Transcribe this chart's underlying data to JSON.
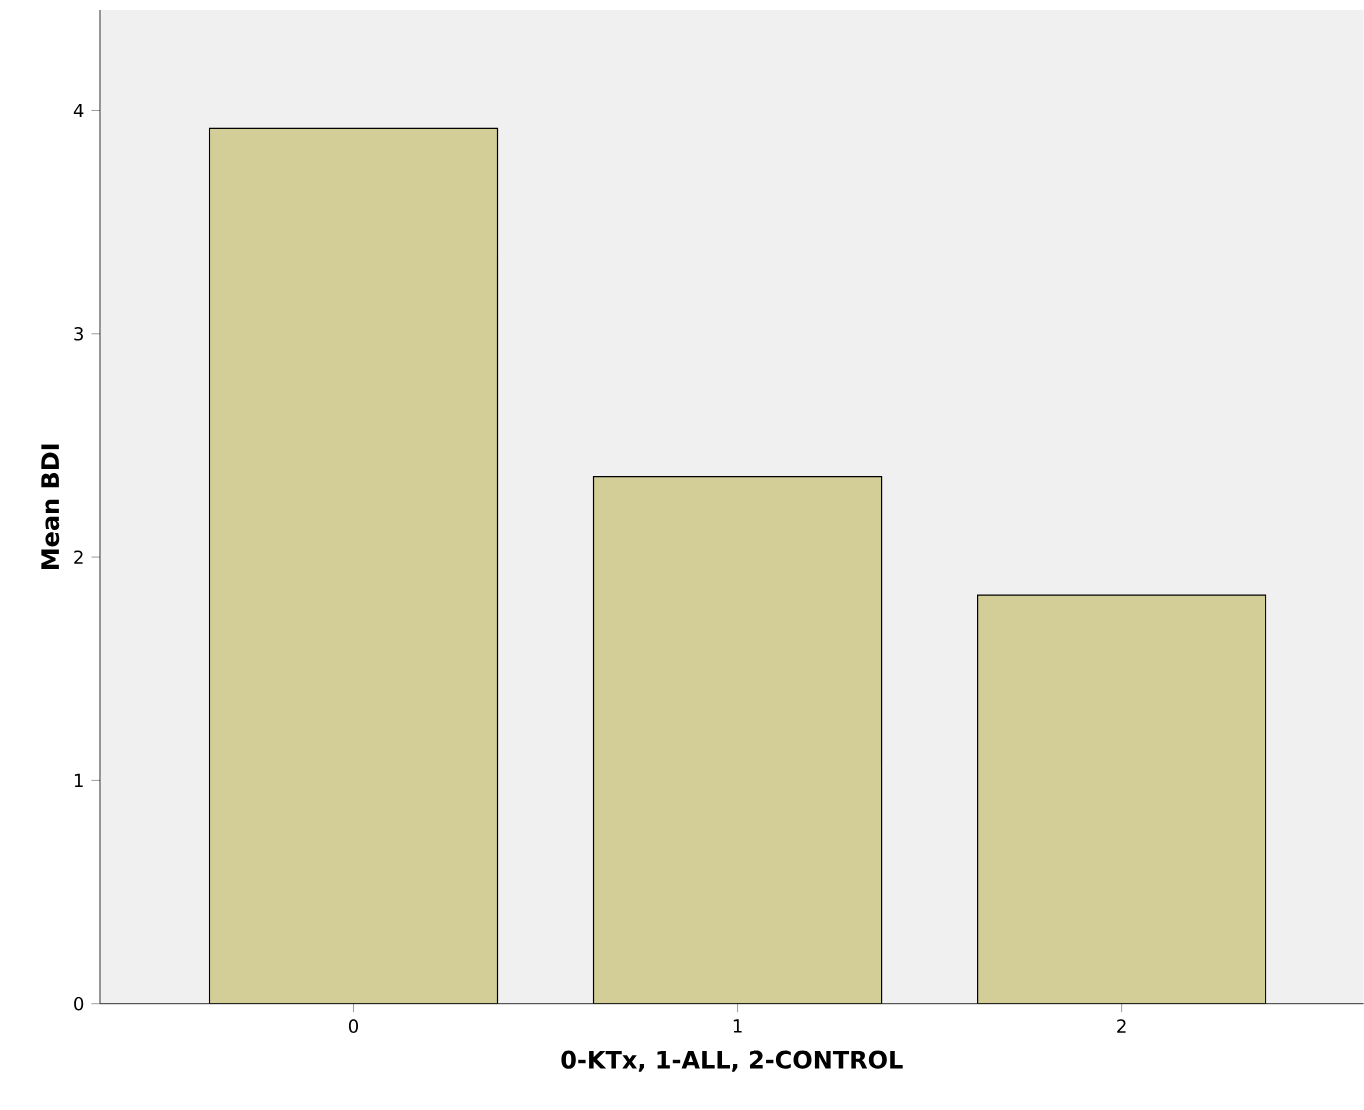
{
  "chart_data": {
    "type": "bar",
    "xlabel": "0-KTx, 1-ALL, 2-CONTROL",
    "ylabel": "Mean BDI",
    "categories": [
      "0",
      "1",
      "2"
    ],
    "values": [
      3.92,
      2.36,
      1.83
    ],
    "color": "#d3ce97",
    "ylim": [
      0,
      4.45
    ],
    "yticks": [
      0,
      1,
      2,
      3,
      4
    ]
  }
}
